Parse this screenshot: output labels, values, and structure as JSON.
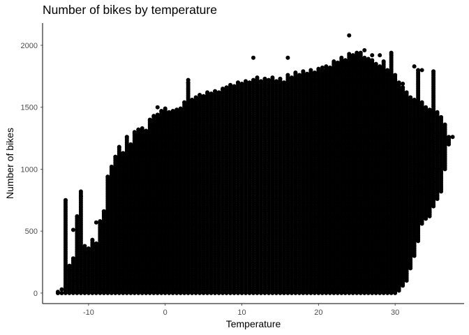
{
  "chart_data": {
    "type": "scatter",
    "title": "Number of bikes by temperature",
    "xlabel": "Temperature",
    "ylabel": "Number of bikes",
    "xlim": [
      -16,
      39
    ],
    "ylim": [
      -85,
      2180
    ],
    "x_ticks": [
      -10,
      0,
      10,
      20,
      30
    ],
    "y_ticks": [
      0,
      500,
      1000,
      1500,
      2000
    ],
    "grid": false,
    "legend": "none",
    "point_color": "#000000",
    "x_step": 0.5,
    "column_ranges": [
      [
        -14.0,
        0,
        0
      ],
      [
        -13.5,
        0,
        0
      ],
      [
        -13.0,
        0,
        750
      ],
      [
        -12.5,
        0,
        220
      ],
      [
        -12.0,
        0,
        280
      ],
      [
        -11.5,
        0,
        620
      ],
      [
        -11.0,
        0,
        820
      ],
      [
        -10.5,
        0,
        380
      ],
      [
        -10.0,
        0,
        360
      ],
      [
        -9.5,
        0,
        430
      ],
      [
        -9.0,
        0,
        400
      ],
      [
        -8.5,
        0,
        580
      ],
      [
        -8.0,
        0,
        660
      ],
      [
        -7.5,
        0,
        940
      ],
      [
        -7.0,
        0,
        1020
      ],
      [
        -6.5,
        0,
        1100
      ],
      [
        -6.0,
        0,
        1180
      ],
      [
        -5.5,
        0,
        1130
      ],
      [
        -5.0,
        0,
        1260
      ],
      [
        -4.5,
        0,
        1200
      ],
      [
        -4.0,
        0,
        1300
      ],
      [
        -3.5,
        0,
        1320
      ],
      [
        -3.0,
        0,
        1330
      ],
      [
        -2.5,
        0,
        1310
      ],
      [
        -2.0,
        0,
        1400
      ],
      [
        -1.5,
        0,
        1430
      ],
      [
        -1.0,
        0,
        1440
      ],
      [
        -0.5,
        0,
        1470
      ],
      [
        0.0,
        0,
        1490
      ],
      [
        0.5,
        0,
        1460
      ],
      [
        1.0,
        0,
        1470
      ],
      [
        1.5,
        0,
        1480
      ],
      [
        2.0,
        0,
        1490
      ],
      [
        2.5,
        0,
        1540
      ],
      [
        3.0,
        0,
        1700
      ],
      [
        3.5,
        0,
        1560
      ],
      [
        4.0,
        0,
        1580
      ],
      [
        4.5,
        0,
        1600
      ],
      [
        5.0,
        0,
        1590
      ],
      [
        5.5,
        0,
        1620
      ],
      [
        6.0,
        0,
        1610
      ],
      [
        6.5,
        0,
        1630
      ],
      [
        7.0,
        0,
        1620
      ],
      [
        7.5,
        0,
        1650
      ],
      [
        8.0,
        0,
        1660
      ],
      [
        8.5,
        0,
        1680
      ],
      [
        9.0,
        0,
        1670
      ],
      [
        9.5,
        0,
        1700
      ],
      [
        10.0,
        0,
        1690
      ],
      [
        10.5,
        0,
        1710
      ],
      [
        11.0,
        0,
        1700
      ],
      [
        11.5,
        0,
        1720
      ],
      [
        12.0,
        0,
        1740
      ],
      [
        12.5,
        0,
        1710
      ],
      [
        13.0,
        0,
        1730
      ],
      [
        13.5,
        0,
        1720
      ],
      [
        14.0,
        0,
        1740
      ],
      [
        14.5,
        0,
        1710
      ],
      [
        15.0,
        0,
        1730
      ],
      [
        15.5,
        0,
        1700
      ],
      [
        16.0,
        0,
        1760
      ],
      [
        16.5,
        0,
        1740
      ],
      [
        17.0,
        0,
        1780
      ],
      [
        17.5,
        0,
        1760
      ],
      [
        18.0,
        0,
        1790
      ],
      [
        18.5,
        0,
        1770
      ],
      [
        19.0,
        0,
        1800
      ],
      [
        19.5,
        0,
        1780
      ],
      [
        20.0,
        0,
        1810
      ],
      [
        20.5,
        0,
        1800
      ],
      [
        21.0,
        0,
        1830
      ],
      [
        21.5,
        0,
        1820
      ],
      [
        22.0,
        0,
        1870
      ],
      [
        22.5,
        0,
        1860
      ],
      [
        23.0,
        0,
        1900
      ],
      [
        23.5,
        0,
        1880
      ],
      [
        24.0,
        0,
        1930
      ],
      [
        24.5,
        0,
        1920
      ],
      [
        25.0,
        0,
        1940
      ],
      [
        25.5,
        0,
        1930
      ],
      [
        26.0,
        0,
        1900
      ],
      [
        26.5,
        0,
        1890
      ],
      [
        27.0,
        0,
        1880
      ],
      [
        27.5,
        0,
        1850
      ],
      [
        28.0,
        0,
        1830
      ],
      [
        28.5,
        0,
        1870
      ],
      [
        29.0,
        0,
        1800
      ],
      [
        29.5,
        0,
        1930
      ],
      [
        30.0,
        0,
        1760
      ],
      [
        30.5,
        20,
        1700
      ],
      [
        31.0,
        60,
        1660
      ],
      [
        31.5,
        100,
        1620
      ],
      [
        32.0,
        200,
        1580
      ],
      [
        32.5,
        300,
        1560
      ],
      [
        33.0,
        420,
        1800
      ],
      [
        33.5,
        560,
        1540
      ],
      [
        34.0,
        600,
        1500
      ],
      [
        34.5,
        620,
        1480
      ],
      [
        35.0,
        700,
        1790
      ],
      [
        35.5,
        760,
        1460
      ],
      [
        36.0,
        820,
        1420
      ],
      [
        36.5,
        1000,
        1360
      ],
      [
        37.0,
        1200,
        1260
      ]
    ],
    "outlier_points": [
      [
        24.0,
        2080
      ],
      [
        11.5,
        1900
      ],
      [
        16.0,
        1900
      ],
      [
        3.0,
        1720
      ],
      [
        -1.0,
        1500
      ],
      [
        -12.0,
        510
      ],
      [
        -11.0,
        780
      ],
      [
        -9.0,
        570
      ],
      [
        -10.0,
        330
      ],
      [
        -12.5,
        180
      ],
      [
        -12.0,
        100
      ],
      [
        -11.0,
        270
      ],
      [
        -10.5,
        140
      ],
      [
        -9.5,
        250
      ],
      [
        -13.5,
        30
      ],
      [
        -14.0,
        10
      ],
      [
        -13.0,
        55
      ],
      [
        -12.5,
        60
      ],
      [
        33.0,
        860
      ],
      [
        35.0,
        900
      ],
      [
        36.0,
        1260
      ],
      [
        36.0,
        1000
      ],
      [
        35.5,
        1140
      ],
      [
        37.5,
        1260
      ],
      [
        29.0,
        280
      ],
      [
        28.5,
        200
      ],
      [
        28.0,
        300
      ],
      [
        27.5,
        140
      ],
      [
        27.0,
        360
      ],
      [
        26.5,
        250
      ],
      [
        26.0,
        330
      ],
      [
        25.5,
        360
      ],
      [
        25.0,
        240
      ],
      [
        33.5,
        1800
      ],
      [
        32.5,
        1830
      ],
      [
        31.0,
        1690
      ],
      [
        31.5,
        1570
      ],
      [
        30.0,
        1720
      ],
      [
        29.5,
        1940
      ],
      [
        28.0,
        1920
      ],
      [
        27.0,
        1920
      ],
      [
        26.0,
        1960
      ],
      [
        25.5,
        1940
      ],
      [
        22.0,
        1850
      ],
      [
        20.5,
        1820
      ]
    ]
  }
}
